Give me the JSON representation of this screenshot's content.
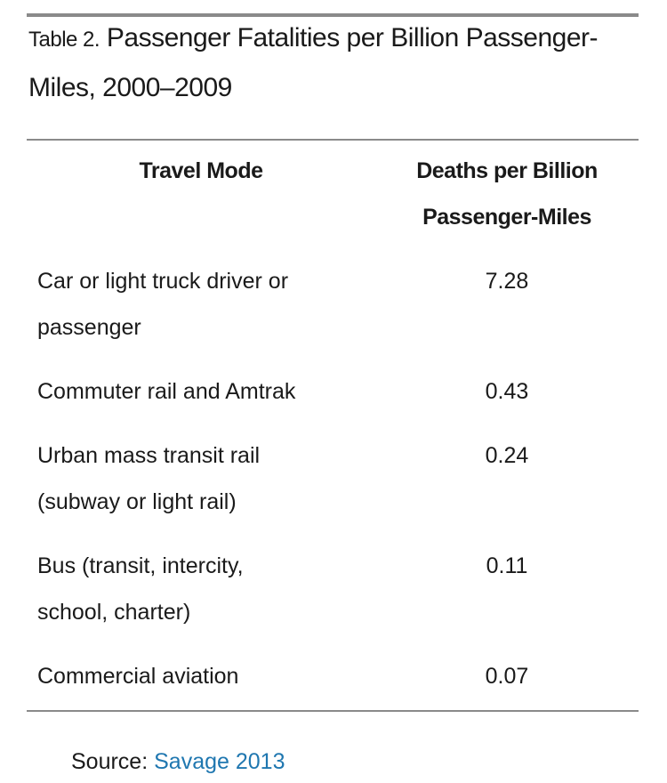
{
  "caption": {
    "label": "Table 2.",
    "title": "Passenger Fatalities per Billion Passenger-Miles, 2000–2009"
  },
  "table": {
    "headers": [
      "Travel Mode",
      "Deaths per Billion Passenger-Miles"
    ],
    "rows": [
      {
        "mode": "Car or light truck driver or passenger",
        "deaths": "7.28"
      },
      {
        "mode": "Commuter rail and Amtrak",
        "deaths": "0.43"
      },
      {
        "mode": "Urban mass transit rail (subway or light rail)",
        "deaths": "0.24"
      },
      {
        "mode": "Bus (transit, intercity, school, charter)",
        "deaths": "0.11"
      },
      {
        "mode": "Commercial aviation",
        "deaths": "0.07"
      }
    ]
  },
  "source": {
    "label": "Source:",
    "link_text": "Savage 2013",
    "link_color": "#1f77b0"
  }
}
